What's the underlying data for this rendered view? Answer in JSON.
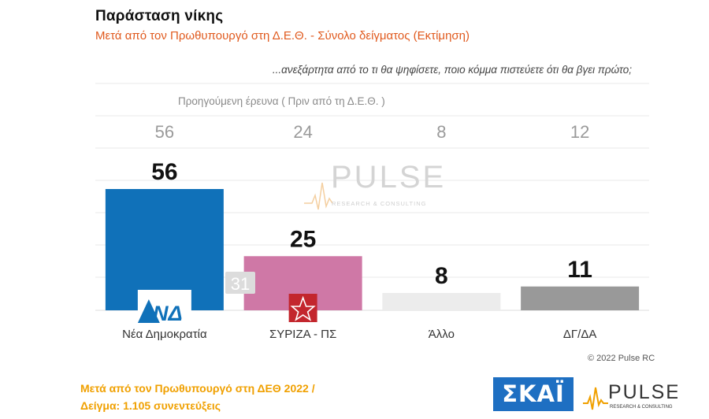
{
  "header": {
    "title": "Παράσταση νίκης",
    "subtitle": "Μετά από τον Πρωθυπουργό στη Δ.Ε.Θ.  -  Σύνολο δείγματος   (Εκτίμηση)",
    "question": "...ανεξάρτητα από το τι θα ψηφίσετε, ποιο κόμμα πιστεύετε ότι θα βγει πρώτο;",
    "previous_label": "Προηγούμενη έρευνα  (  Πριν από τη Δ.Ε.Θ. )"
  },
  "chart_data": {
    "type": "bar",
    "title": "Παράσταση νίκης",
    "categories": [
      "Νέα Δημοκρατία",
      "ΣΥΡΙΖΑ - ΠΣ",
      "Άλλο",
      "ΔΓ/ΔΑ"
    ],
    "values": [
      56,
      25,
      8,
      11
    ],
    "previous_values": [
      56,
      24,
      8,
      12
    ],
    "previous_label": "Προηγούμενη έρευνα  (  Πριν από τη Δ.Ε.Θ. )",
    "annotation": "31",
    "colors": [
      "#1071b9",
      "#cf78a6",
      "#ececec",
      "#999999"
    ],
    "ylim": [
      0,
      60
    ],
    "grid": true,
    "xlabel": "",
    "ylabel": ""
  },
  "watermark": {
    "brand": "PULSE",
    "tagline": "RESEARCH & CONSULTING"
  },
  "logos": {
    "nd": "ΝΔ",
    "skai": "ΣΚΑΪ",
    "pulse": "PULSE",
    "pulse_tagline": "RESEARCH & CONSULTING"
  },
  "copyright": "© 2022 Pulse RC",
  "footer": {
    "line1": "Μετά από τον Πρωθυπουργό στη ΔΕΘ  2022  /",
    "line2": "Δείγμα:  1.105 συνεντεύξεις"
  }
}
